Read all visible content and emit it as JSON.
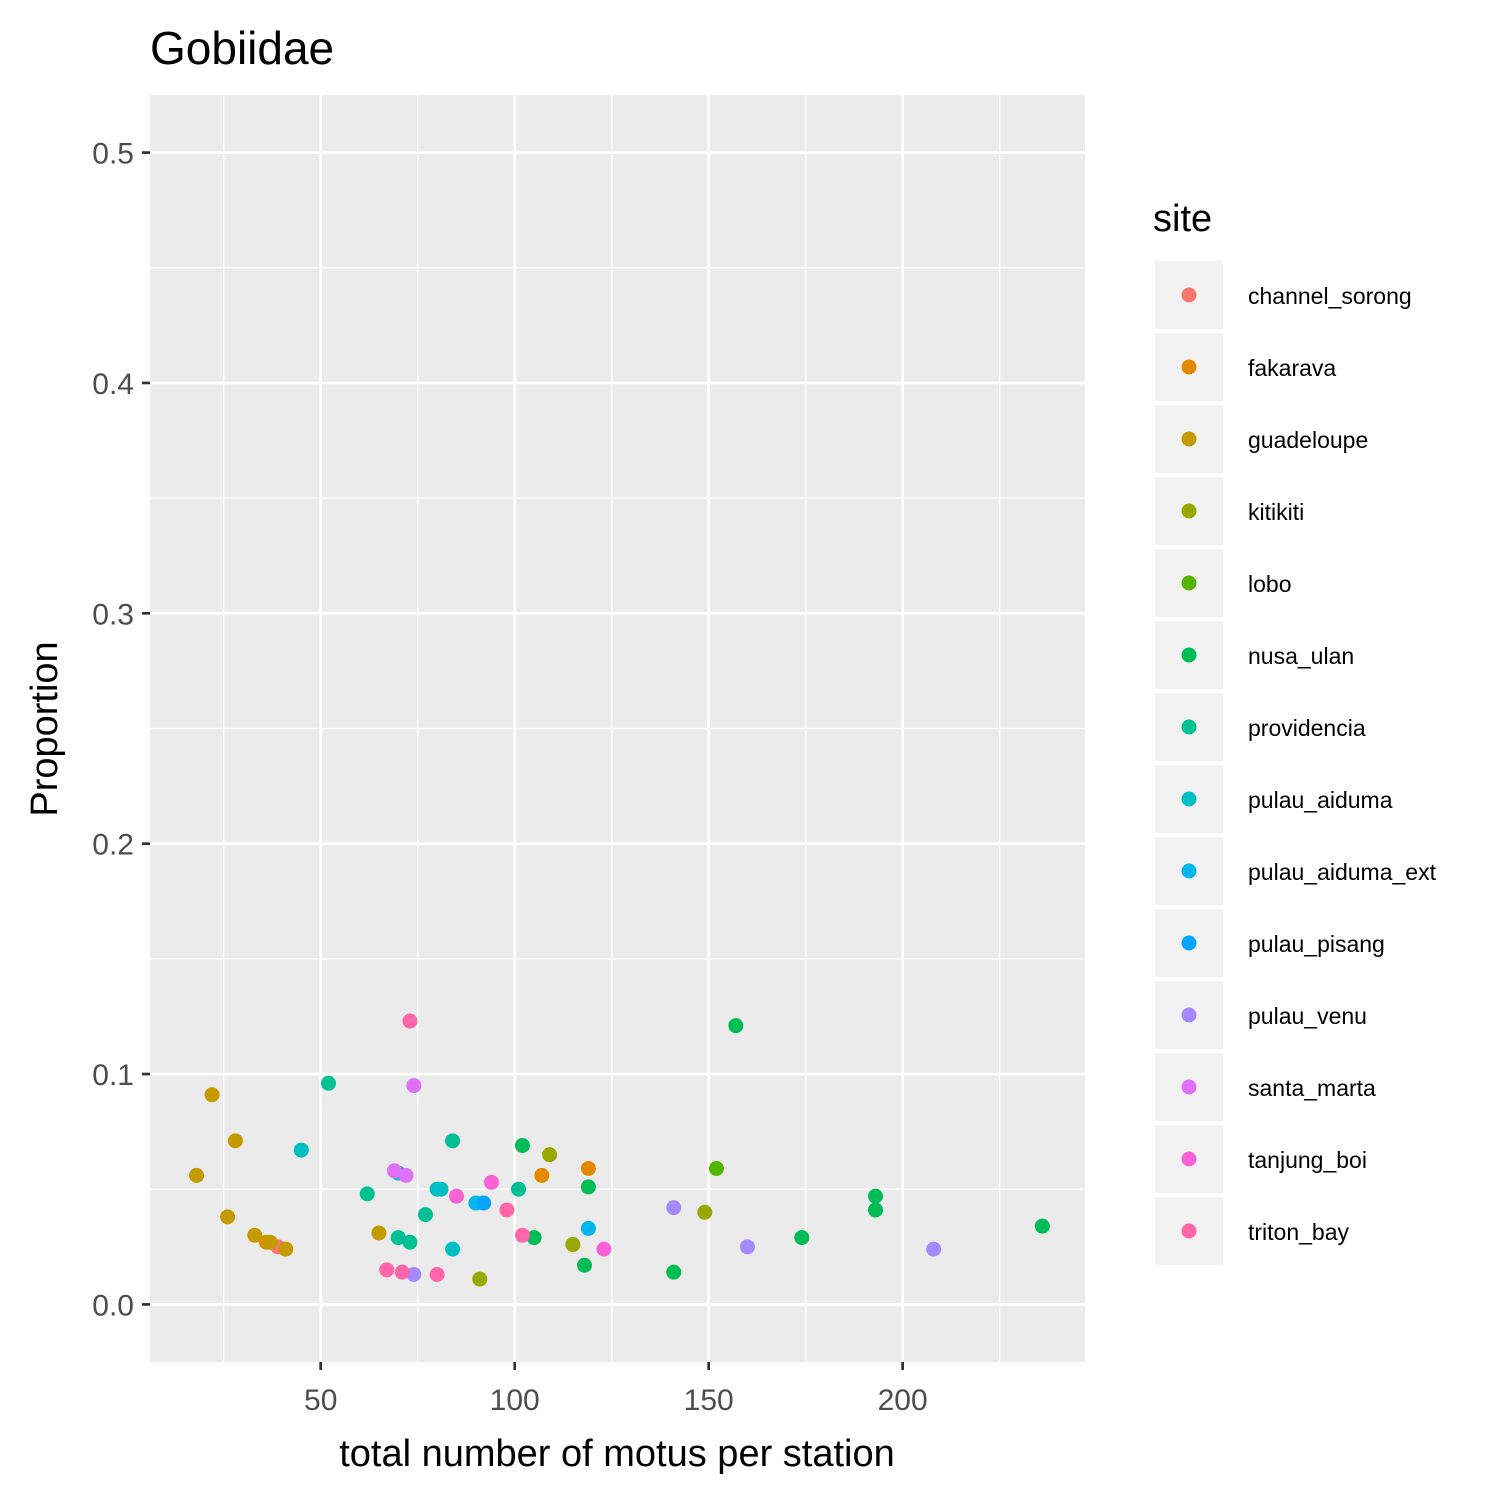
{
  "chart_data": {
    "type": "scatter",
    "title": "Gobiidae",
    "xlabel": "total number of motus per station",
    "ylabel": "Proportion",
    "xlim": [
      6,
      247
    ],
    "ylim": [
      -0.025,
      0.525
    ],
    "x_ticks": [
      50,
      100,
      150,
      200
    ],
    "y_ticks": [
      0.0,
      0.1,
      0.2,
      0.3,
      0.4,
      0.5
    ],
    "y_tick_labels": [
      "0.0",
      "0.1",
      "0.2",
      "0.3",
      "0.4",
      "0.5"
    ],
    "grid": true,
    "legend": {
      "title": "site",
      "position": "right"
    },
    "series": [
      {
        "name": "channel_sorong",
        "color": "#F8766D",
        "points": [
          [
            39,
            0.025
          ]
        ]
      },
      {
        "name": "fakarava",
        "color": "#E38900",
        "points": [
          [
            36,
            0.027
          ],
          [
            107,
            0.056
          ],
          [
            119,
            0.059
          ]
        ]
      },
      {
        "name": "guadeloupe",
        "color": "#C49A00",
        "points": [
          [
            18,
            0.056
          ],
          [
            22,
            0.091
          ],
          [
            26,
            0.038
          ],
          [
            28,
            0.071
          ],
          [
            33,
            0.03
          ],
          [
            37,
            0.027
          ],
          [
            41,
            0.024
          ],
          [
            65,
            0.031
          ]
        ]
      },
      {
        "name": "kitikiti",
        "color": "#99A800",
        "points": [
          [
            91,
            0.011
          ],
          [
            109,
            0.065
          ],
          [
            115,
            0.026
          ],
          [
            149,
            0.04
          ]
        ]
      },
      {
        "name": "lobo",
        "color": "#53B400",
        "points": [
          [
            152,
            0.059
          ]
        ]
      },
      {
        "name": "nusa_ulan",
        "color": "#00BC56",
        "points": [
          [
            102,
            0.069
          ],
          [
            105,
            0.029
          ],
          [
            118,
            0.017
          ],
          [
            119,
            0.051
          ],
          [
            141,
            0.014
          ],
          [
            157,
            0.121
          ],
          [
            174,
            0.029
          ],
          [
            193,
            0.047
          ],
          [
            193,
            0.041
          ],
          [
            236,
            0.034
          ]
        ]
      },
      {
        "name": "providencia",
        "color": "#00C094",
        "points": [
          [
            52,
            0.096
          ],
          [
            62,
            0.048
          ],
          [
            70,
            0.029
          ],
          [
            73,
            0.027
          ],
          [
            77,
            0.039
          ],
          [
            84,
            0.071
          ],
          [
            101,
            0.05
          ]
        ]
      },
      {
        "name": "pulau_aiduma",
        "color": "#00BFC4",
        "points": [
          [
            45,
            0.067
          ],
          [
            70,
            0.057
          ],
          [
            80,
            0.05
          ],
          [
            81,
            0.05
          ],
          [
            84,
            0.024
          ]
        ]
      },
      {
        "name": "pulau_aiduma_ext",
        "color": "#00B6EB",
        "points": [
          [
            90,
            0.044
          ],
          [
            119,
            0.033
          ]
        ]
      },
      {
        "name": "pulau_pisang",
        "color": "#06A4FF",
        "points": [
          [
            92,
            0.044
          ]
        ]
      },
      {
        "name": "pulau_venu",
        "color": "#A58AFF",
        "points": [
          [
            74,
            0.013
          ],
          [
            141,
            0.042
          ],
          [
            160,
            0.025
          ],
          [
            208,
            0.024
          ]
        ]
      },
      {
        "name": "santa_marta",
        "color": "#DF70F8",
        "points": [
          [
            69,
            0.058
          ],
          [
            72,
            0.056
          ],
          [
            74,
            0.095
          ]
        ]
      },
      {
        "name": "tanjung_boi",
        "color": "#FB61D7",
        "points": [
          [
            85,
            0.047
          ],
          [
            94,
            0.053
          ],
          [
            123,
            0.024
          ]
        ]
      },
      {
        "name": "triton_bay",
        "color": "#FF66A8",
        "points": [
          [
            67,
            0.015
          ],
          [
            71,
            0.014
          ],
          [
            73,
            0.123
          ],
          [
            80,
            0.013
          ],
          [
            98,
            0.041
          ],
          [
            102,
            0.03
          ]
        ]
      }
    ]
  }
}
